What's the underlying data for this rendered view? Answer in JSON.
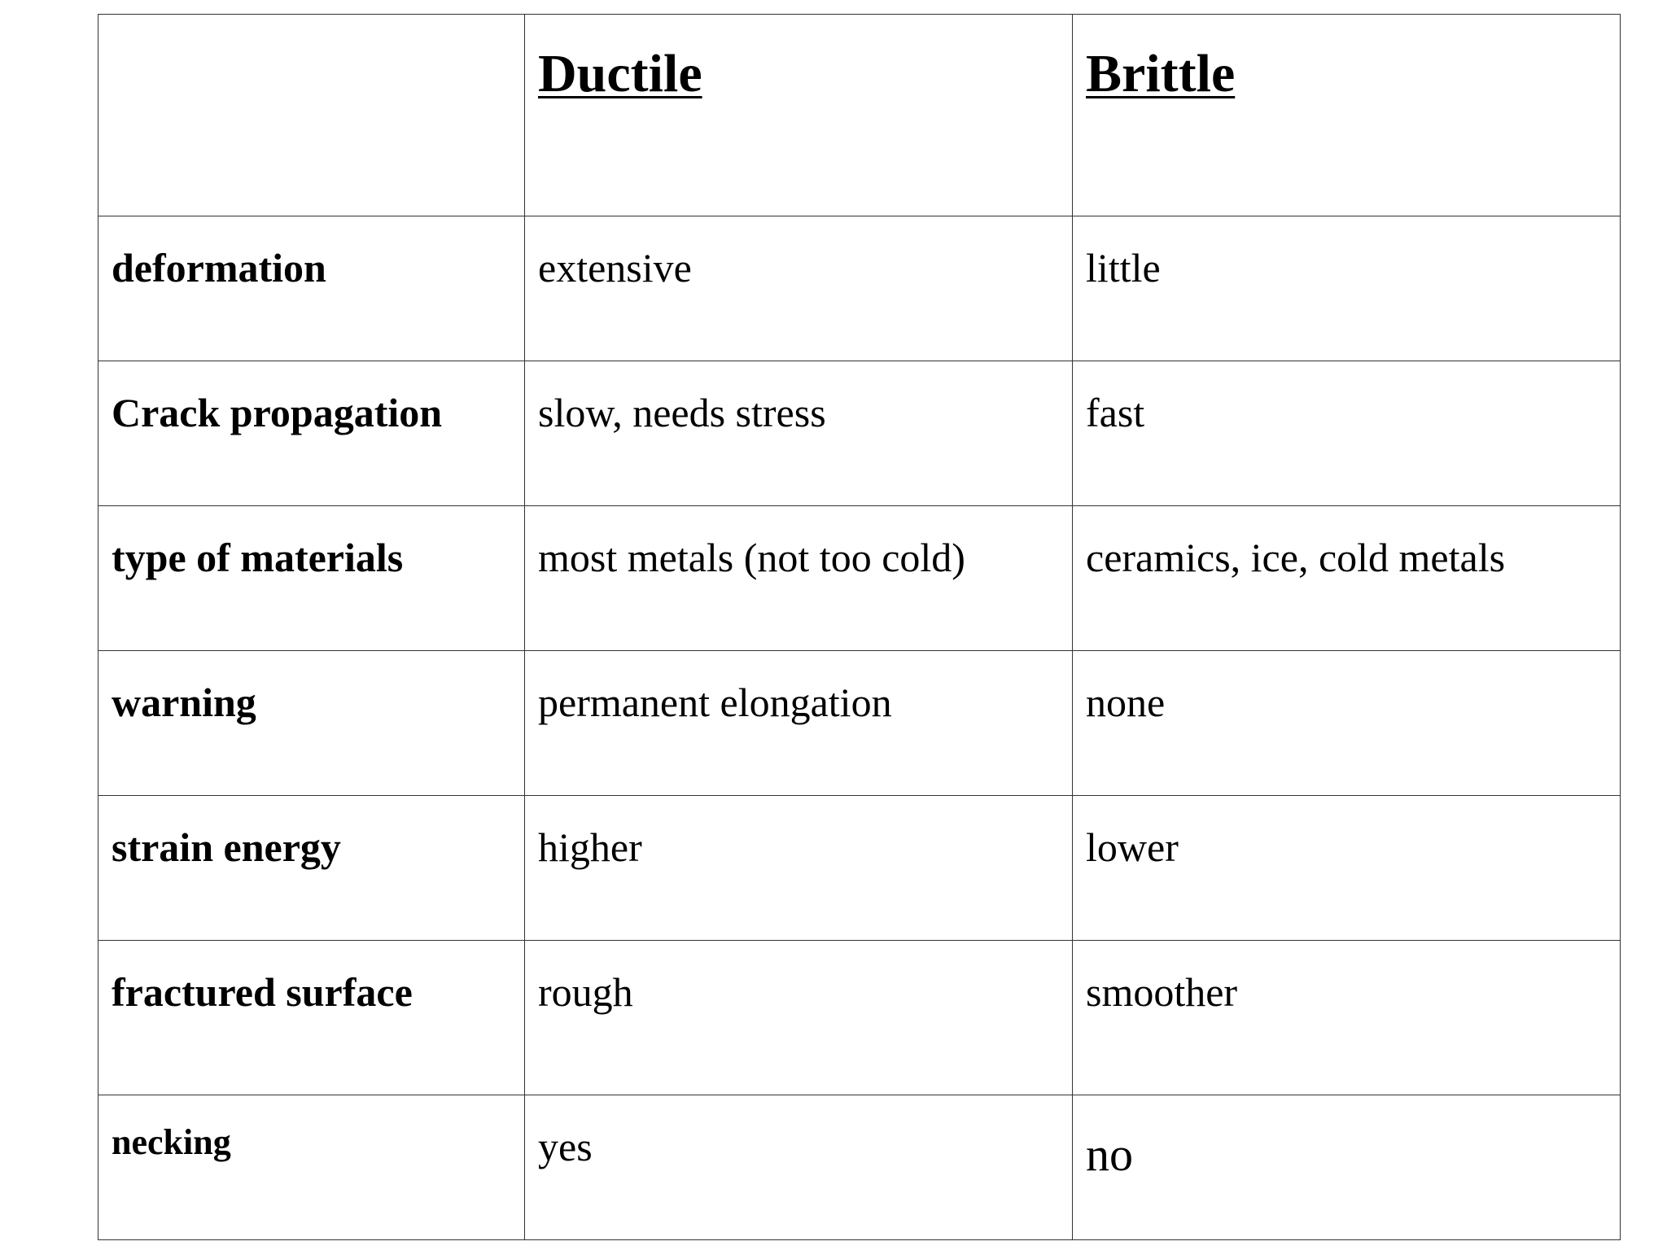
{
  "table": {
    "headers": [
      "",
      "Ductile",
      "Brittle"
    ],
    "rows": [
      {
        "label": "deformation",
        "ductile": "extensive",
        "brittle": "little"
      },
      {
        "label": "Crack propagation",
        "ductile": "slow, needs stress",
        "brittle": "fast"
      },
      {
        "label": "type of materials",
        "ductile": "most metals (not too cold)",
        "brittle": "ceramics, ice, cold metals"
      },
      {
        "label": "warning",
        "ductile": "permanent elongation",
        "brittle": "none"
      },
      {
        "label": "strain energy",
        "ductile": "higher",
        "brittle": "lower"
      },
      {
        "label": "fractured surface",
        "ductile": "rough",
        "brittle": "smoother"
      },
      {
        "label": "necking",
        "ductile": "yes",
        "brittle": "no"
      }
    ]
  }
}
